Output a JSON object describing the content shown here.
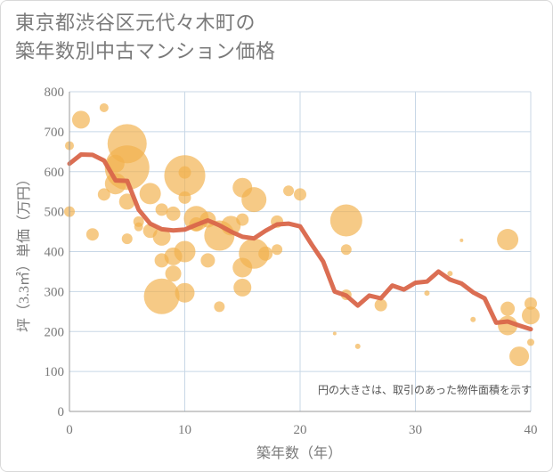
{
  "chart_data": {
    "type": "scatter",
    "title_lines": [
      "東京都渋谷区元代々木町の",
      "築年数別中古マンション価格"
    ],
    "xlabel": "築年数（年）",
    "ylabel": "坪（3.3㎡）単価（万円）",
    "xlim": [
      0,
      40
    ],
    "ylim": [
      0,
      800
    ],
    "xticks": [
      "0",
      "10",
      "20",
      "30",
      "40"
    ],
    "yticks": [
      "0",
      "100",
      "200",
      "300",
      "400",
      "500",
      "600",
      "700",
      "800"
    ],
    "grid": true,
    "annotation": "円の大きさは、取引のあった物件面積を示す",
    "colors": {
      "bubble": "#f2b14d",
      "line": "#d9664a",
      "grid": "#c8d7e6"
    },
    "bubbles": [
      {
        "x": 0,
        "y": 665,
        "r": 5
      },
      {
        "x": 0,
        "y": 500,
        "r": 6
      },
      {
        "x": 1,
        "y": 730,
        "r": 10
      },
      {
        "x": 2,
        "y": 443,
        "r": 7
      },
      {
        "x": 3,
        "y": 760,
        "r": 5
      },
      {
        "x": 3,
        "y": 543,
        "r": 7
      },
      {
        "x": 4,
        "y": 620,
        "r": 10
      },
      {
        "x": 4,
        "y": 570,
        "r": 12
      },
      {
        "x": 5,
        "y": 670,
        "r": 22
      },
      {
        "x": 5,
        "y": 610,
        "r": 25
      },
      {
        "x": 5,
        "y": 525,
        "r": 9
      },
      {
        "x": 5,
        "y": 432,
        "r": 6
      },
      {
        "x": 6,
        "y": 475,
        "r": 6
      },
      {
        "x": 6,
        "y": 462,
        "r": 5
      },
      {
        "x": 7,
        "y": 545,
        "r": 12
      },
      {
        "x": 7,
        "y": 452,
        "r": 8
      },
      {
        "x": 8,
        "y": 505,
        "r": 7
      },
      {
        "x": 8,
        "y": 437,
        "r": 10
      },
      {
        "x": 8,
        "y": 378,
        "r": 8
      },
      {
        "x": 8,
        "y": 288,
        "r": 20
      },
      {
        "x": 9,
        "y": 495,
        "r": 8
      },
      {
        "x": 9,
        "y": 388,
        "r": 10
      },
      {
        "x": 9,
        "y": 345,
        "r": 9
      },
      {
        "x": 10,
        "y": 598,
        "r": 7
      },
      {
        "x": 10,
        "y": 590,
        "r": 23
      },
      {
        "x": 10,
        "y": 535,
        "r": 7
      },
      {
        "x": 10,
        "y": 400,
        "r": 12
      },
      {
        "x": 10,
        "y": 297,
        "r": 11
      },
      {
        "x": 11,
        "y": 483,
        "r": 14
      },
      {
        "x": 11,
        "y": 468,
        "r": 8
      },
      {
        "x": 12,
        "y": 480,
        "r": 9
      },
      {
        "x": 12,
        "y": 378,
        "r": 8
      },
      {
        "x": 13,
        "y": 440,
        "r": 17
      },
      {
        "x": 13,
        "y": 262,
        "r": 6
      },
      {
        "x": 14,
        "y": 465,
        "r": 11
      },
      {
        "x": 15,
        "y": 560,
        "r": 11
      },
      {
        "x": 15,
        "y": 480,
        "r": 7
      },
      {
        "x": 15,
        "y": 360,
        "r": 11
      },
      {
        "x": 15,
        "y": 310,
        "r": 10
      },
      {
        "x": 16,
        "y": 530,
        "r": 14
      },
      {
        "x": 16,
        "y": 395,
        "r": 17
      },
      {
        "x": 17,
        "y": 395,
        "r": 8
      },
      {
        "x": 18,
        "y": 475,
        "r": 7
      },
      {
        "x": 18,
        "y": 405,
        "r": 6
      },
      {
        "x": 19,
        "y": 552,
        "r": 6
      },
      {
        "x": 20,
        "y": 543,
        "r": 7
      },
      {
        "x": 23,
        "y": 195,
        "r": 2
      },
      {
        "x": 24,
        "y": 478,
        "r": 18
      },
      {
        "x": 24,
        "y": 405,
        "r": 6
      },
      {
        "x": 24,
        "y": 292,
        "r": 6
      },
      {
        "x": 25,
        "y": 163,
        "r": 3
      },
      {
        "x": 27,
        "y": 266,
        "r": 7
      },
      {
        "x": 31,
        "y": 296,
        "r": 3
      },
      {
        "x": 33,
        "y": 345,
        "r": 3
      },
      {
        "x": 34,
        "y": 428,
        "r": 2
      },
      {
        "x": 35,
        "y": 230,
        "r": 3
      },
      {
        "x": 38,
        "y": 430,
        "r": 12
      },
      {
        "x": 38,
        "y": 257,
        "r": 8
      },
      {
        "x": 38,
        "y": 215,
        "r": 11
      },
      {
        "x": 39,
        "y": 138,
        "r": 11
      },
      {
        "x": 40,
        "y": 270,
        "r": 7
      },
      {
        "x": 40,
        "y": 240,
        "r": 10
      },
      {
        "x": 40,
        "y": 173,
        "r": 4
      }
    ],
    "trend": {
      "x": [
        0,
        1,
        2,
        3,
        4,
        5,
        6,
        7,
        8,
        9,
        10,
        11,
        12,
        13,
        14,
        15,
        16,
        17,
        18,
        19,
        20,
        21,
        22,
        23,
        24,
        25,
        26,
        27,
        28,
        29,
        30,
        31,
        32,
        33,
        34,
        35,
        36,
        37,
        38,
        39,
        40
      ],
      "y": [
        620,
        643,
        642,
        628,
        578,
        577,
        505,
        470,
        456,
        453,
        455,
        467,
        478,
        466,
        450,
        437,
        433,
        452,
        468,
        470,
        463,
        418,
        375,
        300,
        290,
        265,
        290,
        283,
        315,
        305,
        322,
        325,
        350,
        330,
        320,
        298,
        283,
        222,
        225,
        215,
        206
      ]
    }
  }
}
